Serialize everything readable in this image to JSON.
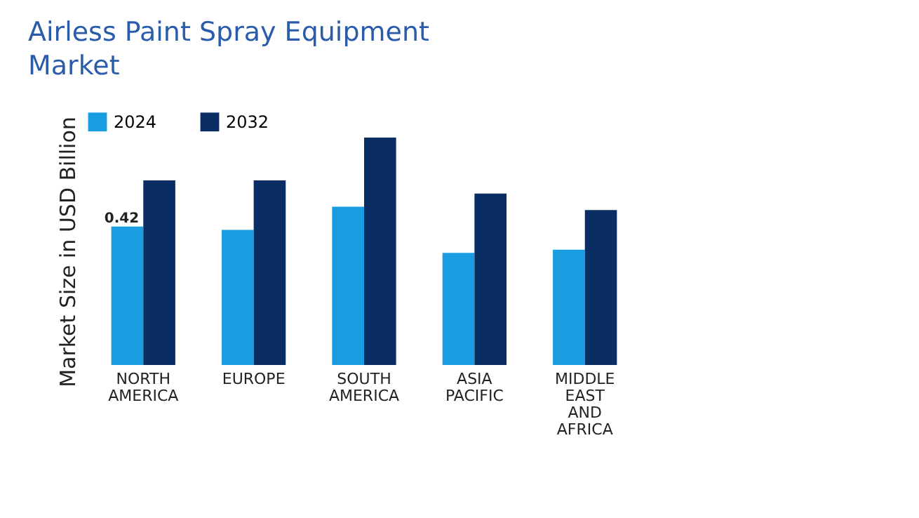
{
  "chart_data": {
    "type": "bar",
    "title": "Airless Paint Spray Equipment Market",
    "ylabel": "Market Size in USD Billion",
    "legend": "top",
    "categories": [
      "NORTH AMERICA",
      "EUROPE",
      "SOUTH AMERICA",
      "ASIA PACIFIC",
      "MIDDLE EAST AND AFRICA"
    ],
    "series": [
      {
        "name": "2024",
        "color": "#1a9ce0",
        "values": [
          0.42,
          0.41,
          0.48,
          0.34,
          0.35
        ],
        "value_labels": [
          "0.42",
          null,
          null,
          null,
          null
        ]
      },
      {
        "name": "2032",
        "color": "#0a2d63",
        "values": [
          0.56,
          0.56,
          0.69,
          0.52,
          0.47
        ]
      }
    ]
  }
}
